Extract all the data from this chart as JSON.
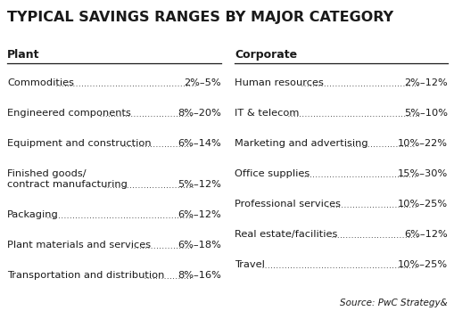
{
  "title": "TYPICAL SAVINGS RANGES BY MAJOR CATEGORY",
  "title_fontsize": 11.5,
  "title_fontweight": "bold",
  "background_color": "#ffffff",
  "source_text": "Source: PwC Strategy&",
  "plant_header": "Plant",
  "corporate_header": "Corporate",
  "plant_items": [
    {
      "label": "Commodities",
      "value": "2%–5%",
      "two_line": false
    },
    {
      "label": "Engineered components",
      "value": "8%–20%",
      "two_line": false
    },
    {
      "label": "Equipment and construction",
      "value": "6%–14%",
      "two_line": false
    },
    {
      "label": "Finished goods/",
      "label2": "contract manufacturing",
      "value": "5%–12%",
      "two_line": true
    },
    {
      "label": "Packaging",
      "value": "6%–12%",
      "two_line": false
    },
    {
      "label": "Plant materials and services",
      "value": "6%–18%",
      "two_line": false
    },
    {
      "label": "Transportation and distribution",
      "value": "8%–16%",
      "two_line": false
    }
  ],
  "corporate_items": [
    {
      "label": "Human resources",
      "value": "2%–12%",
      "two_line": false
    },
    {
      "label": "IT & telecom",
      "value": "5%–10%",
      "two_line": false
    },
    {
      "label": "Marketing and advertising",
      "value": "10%–22%",
      "two_line": false
    },
    {
      "label": "Office supplies",
      "value": "15%–30%",
      "two_line": false
    },
    {
      "label": "Professional services",
      "value": "10%–25%",
      "two_line": false
    },
    {
      "label": "Real estate/facilities",
      "value": "6%–12%",
      "two_line": false
    },
    {
      "label": "Travel",
      "value": "10%–25%",
      "two_line": false
    }
  ],
  "header_fontsize": 9.0,
  "item_fontsize": 8.2,
  "source_fontsize": 7.5,
  "text_color": "#1a1a1a",
  "line_color": "#1a1a1a"
}
